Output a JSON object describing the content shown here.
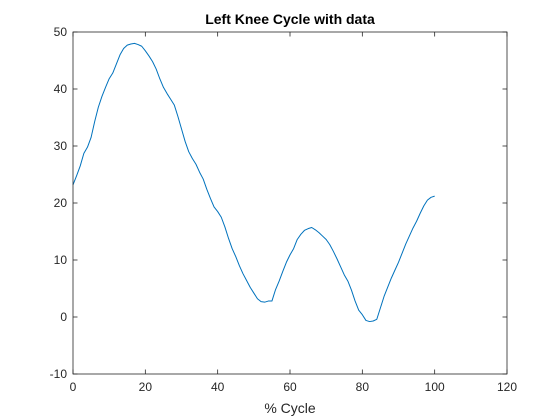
{
  "chart_data": {
    "type": "line",
    "title": "Left Knee Cycle with data",
    "xlabel": "% Cycle",
    "ylabel": "",
    "xlim": [
      0,
      120
    ],
    "ylim": [
      -10,
      50
    ],
    "xticks": [
      "0",
      "20",
      "40",
      "60",
      "80",
      "100",
      "120"
    ],
    "yticks": [
      "-10",
      "0",
      "10",
      "20",
      "30",
      "40",
      "50"
    ],
    "grid": false,
    "legend": "none",
    "line_color": "#0072BD",
    "series": [
      {
        "x": [
          0,
          1,
          2,
          3,
          4,
          5,
          6,
          7,
          8,
          9,
          10,
          11,
          12,
          13,
          14,
          15,
          16,
          17,
          18,
          19,
          20,
          21,
          22,
          23,
          24,
          25,
          26,
          27,
          28,
          29,
          30,
          31,
          32,
          33,
          34,
          35,
          36,
          37,
          38,
          39,
          40,
          41,
          42,
          43,
          44,
          45,
          46,
          47,
          48,
          49,
          50,
          51,
          52,
          53,
          54,
          55,
          56,
          57,
          58,
          59,
          60,
          61,
          62,
          63,
          64,
          65,
          66,
          67,
          68,
          69,
          70,
          71,
          72,
          73,
          74,
          75,
          76,
          77,
          78,
          79,
          80,
          81,
          82,
          83,
          84,
          85,
          86,
          87,
          88,
          89,
          90,
          91,
          92,
          93,
          94,
          95,
          96,
          97,
          98,
          99,
          100
        ],
        "values": [
          23.2,
          24.8,
          26.5,
          28.7,
          29.8,
          31.5,
          34.3,
          36.8,
          38.7,
          40.3,
          41.8,
          42.8,
          44.4,
          46.0,
          47.1,
          47.7,
          47.9,
          48.0,
          47.8,
          47.5,
          46.7,
          45.8,
          44.8,
          43.5,
          41.8,
          40.3,
          39.2,
          38.2,
          37.2,
          35.2,
          33.0,
          30.8,
          29.0,
          27.8,
          26.8,
          25.4,
          24.2,
          22.4,
          20.8,
          19.3,
          18.5,
          17.5,
          15.8,
          13.8,
          12.0,
          10.6,
          9.0,
          7.6,
          6.4,
          5.2,
          4.2,
          3.2,
          2.7,
          2.6,
          2.8,
          2.8,
          4.8,
          6.3,
          8.0,
          9.6,
          10.9,
          12.0,
          13.6,
          14.5,
          15.2,
          15.5,
          15.7,
          15.3,
          14.8,
          14.2,
          13.6,
          12.7,
          11.5,
          10.2,
          8.8,
          7.4,
          6.3,
          4.7,
          2.8,
          1.2,
          0.4,
          -0.6,
          -0.8,
          -0.7,
          -0.4,
          1.6,
          3.6,
          5.2,
          6.8,
          8.2,
          9.6,
          11.2,
          12.8,
          14.2,
          15.6,
          16.8,
          18.2,
          19.5,
          20.5,
          21.0,
          21.2
        ]
      }
    ]
  }
}
